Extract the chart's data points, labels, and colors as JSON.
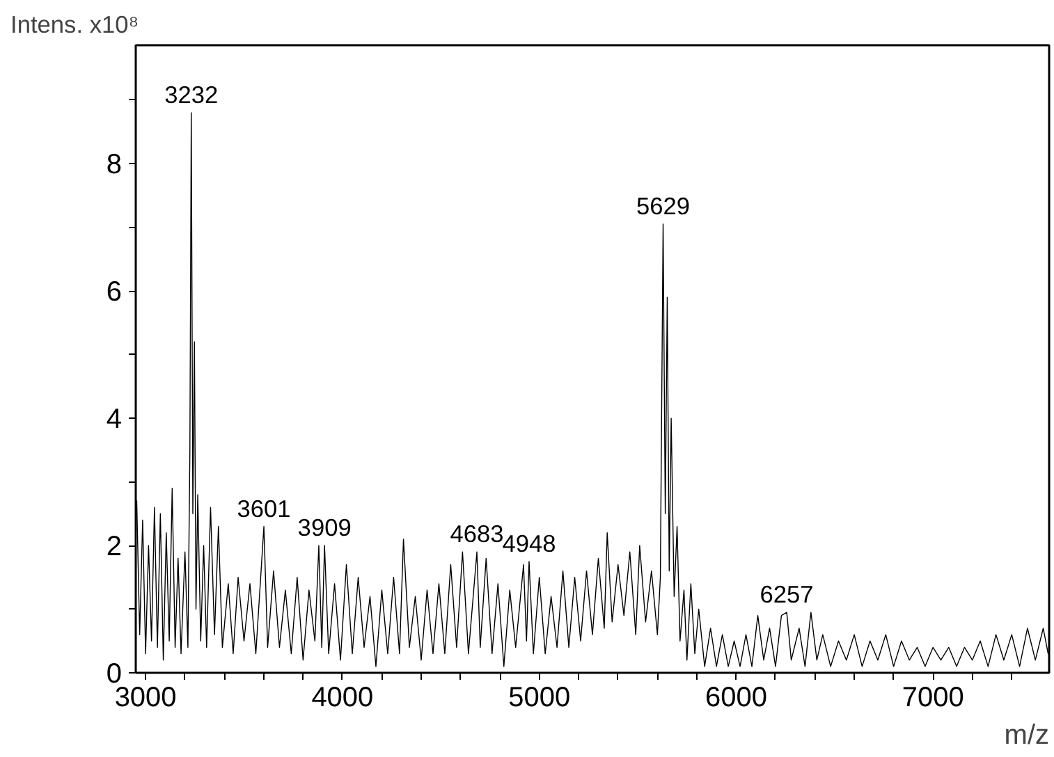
{
  "chart_data": {
    "type": "line",
    "xlabel": "m/z",
    "ylabel": "Intens. x10⁸",
    "xlim": [
      2950,
      7590
    ],
    "ylim": [
      0,
      9.86
    ],
    "xticks": [
      3000,
      {
        "value": 3200,
        "label": null
      },
      {
        "value": 3400,
        "label": null
      },
      {
        "value": 3600,
        "label": null
      },
      {
        "value": 3800,
        "label": null
      },
      4000,
      {
        "value": 4200,
        "label": null
      },
      {
        "value": 4400,
        "label": null
      },
      {
        "value": 4600,
        "label": null
      },
      {
        "value": 4800,
        "label": null
      },
      5000,
      {
        "value": 5200,
        "label": null
      },
      {
        "value": 5400,
        "label": null
      },
      {
        "value": 5600,
        "label": null
      },
      {
        "value": 5800,
        "label": null
      },
      6000,
      {
        "value": 6200,
        "label": null
      },
      {
        "value": 6400,
        "label": null
      },
      {
        "value": 6600,
        "label": null
      },
      {
        "value": 6800,
        "label": null
      },
      7000,
      {
        "value": 7200,
        "label": null
      },
      {
        "value": 7400,
        "label": null
      }
    ],
    "yticks": [
      0,
      {
        "value": 1,
        "label": null
      },
      2,
      {
        "value": 3,
        "label": null
      },
      4,
      {
        "value": 5,
        "label": null
      },
      6,
      {
        "value": 7,
        "label": null
      },
      8,
      {
        "value": 9,
        "label": null
      }
    ],
    "grid": false,
    "marker": "none",
    "line_style": "solid",
    "annotations": [
      {
        "text": "3232",
        "x": 3232,
        "y": 8.8
      },
      {
        "text": "3601",
        "x": 3601,
        "y": 2.3
      },
      {
        "text": "3909",
        "x": 3909,
        "y": 2.0
      },
      {
        "text": "4683",
        "x": 4683,
        "y": 1.9
      },
      {
        "text": "4948",
        "x": 4948,
        "y": 1.75
      },
      {
        "text": "5629",
        "x": 5629,
        "y": 7.05
      },
      {
        "text": "6257",
        "x": 6257,
        "y": 0.95
      }
    ],
    "series": [
      {
        "color": "#000000",
        "x": [
          2955,
          2970,
          2985,
          3000,
          3015,
          3030,
          3045,
          3060,
          3075,
          3090,
          3105,
          3120,
          3135,
          3150,
          3165,
          3180,
          3200,
          3215,
          3225,
          3232,
          3240,
          3248,
          3256,
          3265,
          3280,
          3295,
          3310,
          3330,
          3350,
          3370,
          3390,
          3420,
          3445,
          3470,
          3500,
          3530,
          3560,
          3601,
          3620,
          3650,
          3680,
          3710,
          3740,
          3770,
          3800,
          3830,
          3860,
          3880,
          3895,
          3909,
          3930,
          3960,
          3990,
          4020,
          4050,
          4080,
          4110,
          4140,
          4170,
          4200,
          4230,
          4260,
          4290,
          4310,
          4340,
          4370,
          4400,
          4430,
          4460,
          4490,
          4520,
          4550,
          4580,
          4610,
          4640,
          4683,
          4700,
          4730,
          4760,
          4790,
          4820,
          4850,
          4880,
          4920,
          4935,
          4948,
          4970,
          5000,
          5030,
          5060,
          5090,
          5120,
          5150,
          5180,
          5210,
          5240,
          5270,
          5300,
          5330,
          5345,
          5370,
          5400,
          5430,
          5460,
          5490,
          5510,
          5540,
          5570,
          5600,
          5615,
          5629,
          5640,
          5650,
          5660,
          5670,
          5685,
          5700,
          5715,
          5735,
          5750,
          5770,
          5790,
          5810,
          5840,
          5870,
          5900,
          5930,
          5960,
          5990,
          6020,
          6050,
          6080,
          6110,
          6140,
          6170,
          6200,
          6230,
          6257,
          6280,
          6320,
          6350,
          6380,
          6410,
          6440,
          6480,
          6520,
          6560,
          6600,
          6640,
          6680,
          6720,
          6760,
          6800,
          6840,
          6880,
          6920,
          6960,
          7000,
          7040,
          7080,
          7120,
          7160,
          7200,
          7240,
          7280,
          7320,
          7360,
          7400,
          7440,
          7480,
          7520,
          7560,
          7585
        ],
        "values": [
          2.7,
          0.6,
          2.4,
          0.3,
          2.0,
          0.5,
          2.6,
          0.4,
          2.5,
          0.2,
          2.2,
          0.5,
          2.9,
          0.4,
          1.8,
          0.3,
          1.9,
          0.4,
          3.5,
          8.8,
          2.5,
          5.2,
          1.0,
          2.8,
          0.5,
          2.0,
          0.4,
          2.6,
          0.6,
          2.3,
          0.4,
          1.4,
          0.3,
          1.5,
          0.5,
          1.4,
          0.3,
          2.3,
          0.4,
          1.6,
          0.4,
          1.3,
          0.3,
          1.5,
          0.2,
          1.3,
          0.5,
          2.0,
          0.4,
          2.0,
          0.3,
          1.4,
          0.2,
          1.7,
          0.3,
          1.5,
          0.4,
          1.2,
          0.1,
          1.3,
          0.3,
          1.5,
          0.3,
          2.1,
          0.4,
          1.2,
          0.2,
          1.3,
          0.3,
          1.4,
          0.3,
          1.7,
          0.4,
          1.9,
          0.3,
          1.9,
          0.4,
          1.8,
          0.3,
          1.4,
          0.1,
          1.3,
          0.4,
          1.7,
          0.5,
          1.75,
          0.3,
          1.5,
          0.3,
          1.2,
          0.4,
          1.6,
          0.4,
          1.5,
          0.5,
          1.6,
          0.6,
          1.8,
          0.7,
          2.2,
          0.8,
          1.7,
          0.9,
          1.9,
          0.6,
          2.0,
          0.8,
          1.6,
          0.6,
          1.5,
          7.05,
          2.5,
          5.9,
          1.6,
          4.0,
          1.2,
          2.3,
          0.5,
          1.3,
          0.2,
          1.4,
          0.3,
          1.0,
          0.1,
          0.7,
          0.1,
          0.6,
          0.1,
          0.5,
          0.1,
          0.6,
          0.1,
          0.9,
          0.2,
          0.7,
          0.1,
          0.9,
          0.95,
          0.2,
          0.7,
          0.1,
          0.95,
          0.2,
          0.6,
          0.1,
          0.5,
          0.2,
          0.6,
          0.1,
          0.5,
          0.2,
          0.6,
          0.1,
          0.5,
          0.2,
          0.4,
          0.1,
          0.4,
          0.2,
          0.4,
          0.1,
          0.4,
          0.2,
          0.5,
          0.1,
          0.6,
          0.2,
          0.6,
          0.1,
          0.7,
          0.2,
          0.7,
          0.3
        ]
      }
    ]
  }
}
